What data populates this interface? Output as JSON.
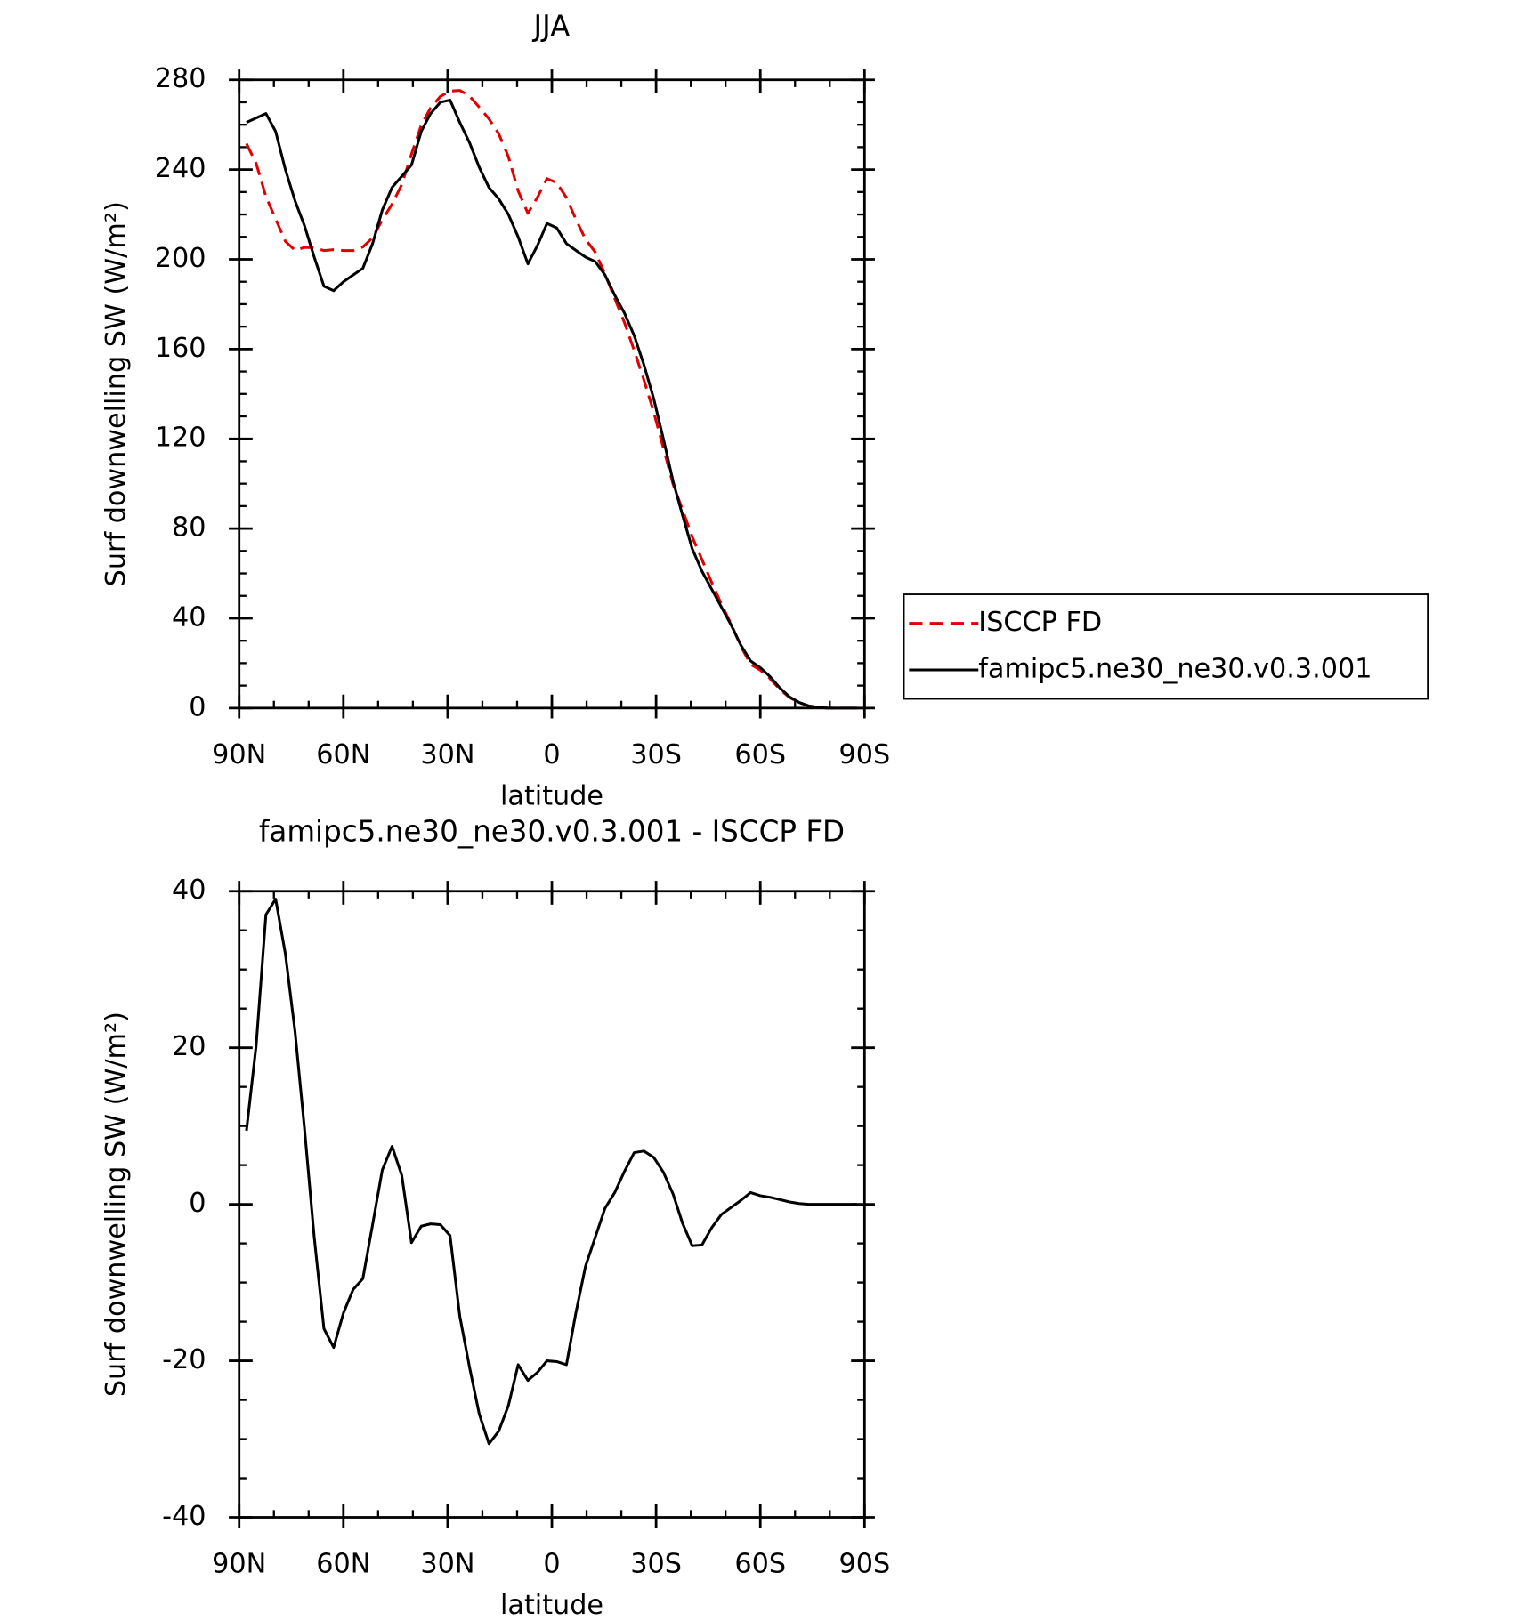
{
  "chart_data": [
    {
      "type": "line",
      "title": "JJA",
      "xlabel": "latitude",
      "ylabel": "Surf downwelling SW (W/m²)",
      "x": [
        87.9,
        85.1,
        82.3,
        79.5,
        76.7,
        73.9,
        71.2,
        68.4,
        65.6,
        62.8,
        60.0,
        57.2,
        54.4,
        51.6,
        48.8,
        46.0,
        43.2,
        40.4,
        37.6,
        34.9,
        32.1,
        29.3,
        26.5,
        23.7,
        20.9,
        18.1,
        15.3,
        12.5,
        9.7,
        6.9,
        4.2,
        1.4,
        -1.4,
        -4.2,
        -6.9,
        -9.7,
        -12.5,
        -15.3,
        -18.1,
        -20.9,
        -23.7,
        -26.5,
        -29.3,
        -32.1,
        -34.9,
        -37.6,
        -40.4,
        -43.2,
        -46.0,
        -48.8,
        -51.6,
        -54.4,
        -57.2,
        -60.0,
        -62.8,
        -65.6,
        -68.4,
        -71.2,
        -73.9,
        -76.7,
        -79.5,
        -82.3,
        -85.1,
        -87.9
      ],
      "series": [
        {
          "name": "ISCCP FD",
          "color": "#e00000",
          "line_style": "dashed",
          "values": [
            251.6,
            242.7,
            228,
            218,
            208,
            204,
            205.3,
            205.2,
            203.9,
            204.3,
            203.9,
            203.9,
            205.5,
            209.6,
            217.6,
            224.6,
            233.3,
            246.9,
            259.8,
            267.5,
            272.6,
            275,
            275.3,
            272.8,
            267.8,
            262.6,
            256,
            245.7,
            230.5,
            220.5,
            227.5,
            236,
            234.1,
            227.5,
            217.9,
            208.9,
            203.2,
            193.5,
            182.5,
            171.8,
            159.4,
            146.2,
            132,
            115.9,
            99.7,
            88.4,
            76.3,
            66.2,
            56,
            46.3,
            37.4,
            27.5,
            19.5,
            16.9,
            13.1,
            8.4,
            4.7,
            2.4,
            1,
            0.3,
            0,
            0,
            0,
            0
          ]
        },
        {
          "name": "famipc5.ne30_ne30.v0.3.001",
          "color": "#000000",
          "line_style": "solid",
          "values": [
            261,
            263,
            265,
            257,
            240,
            226,
            215,
            201,
            188,
            186,
            190,
            193,
            196,
            207,
            222,
            232,
            237,
            242,
            257,
            265,
            270,
            271,
            261,
            252,
            241,
            232,
            227,
            220,
            210,
            198,
            206,
            216,
            214,
            207,
            204,
            201,
            199,
            193,
            184,
            176,
            166,
            153,
            138,
            120,
            101,
            86,
            71,
            61,
            53,
            45,
            37,
            28,
            21,
            18,
            14,
            9,
            5,
            2.5,
            1,
            0.3,
            0,
            0,
            0,
            0
          ]
        }
      ],
      "xlim": [
        90,
        -90
      ],
      "xticks": [
        {
          "value": 90,
          "label": "90N"
        },
        {
          "value": 60,
          "label": "60N"
        },
        {
          "value": 30,
          "label": "30N"
        },
        0,
        {
          "value": -30,
          "label": "30S"
        },
        {
          "value": -60,
          "label": "60S"
        },
        {
          "value": -90,
          "label": "90S"
        }
      ],
      "ylim": [
        0,
        280
      ],
      "yticks": [
        0,
        40,
        80,
        120,
        160,
        200,
        240,
        280
      ],
      "minor_xtick_step": 10,
      "minor_ytick_step": 10,
      "grid": false,
      "legend": "right"
    },
    {
      "type": "line",
      "title": "famipc5.ne30_ne30.v0.3.001 - ISCCP FD",
      "xlabel": "latitude",
      "ylabel": "Surf downwelling SW (W/m²)",
      "x": [
        87.9,
        85.1,
        82.3,
        79.5,
        76.7,
        73.9,
        71.2,
        68.4,
        65.6,
        62.8,
        60.0,
        57.2,
        54.4,
        51.6,
        48.8,
        46.0,
        43.2,
        40.4,
        37.6,
        34.9,
        32.1,
        29.3,
        26.5,
        23.7,
        20.9,
        18.1,
        15.3,
        12.5,
        9.7,
        6.9,
        4.2,
        1.4,
        -1.4,
        -4.2,
        -6.9,
        -9.7,
        -12.5,
        -15.3,
        -18.1,
        -20.9,
        -23.7,
        -26.5,
        -29.3,
        -32.1,
        -34.9,
        -37.6,
        -40.4,
        -43.2,
        -46.0,
        -48.8,
        -51.6,
        -54.4,
        -57.2,
        -60.0,
        -62.8,
        -65.6,
        -68.4,
        -71.2,
        -73.9,
        -76.7,
        -79.5,
        -82.3,
        -85.1,
        -87.9
      ],
      "series": [
        {
          "color": "#000000",
          "line_style": "solid",
          "values": [
            9.4,
            20.3,
            37,
            39,
            32,
            22,
            9.7,
            -4.2,
            -15.9,
            -18.3,
            -13.9,
            -10.9,
            -9.5,
            -2.6,
            4.4,
            7.4,
            3.7,
            -4.9,
            -2.8,
            -2.5,
            -2.6,
            -4,
            -14.3,
            -20.8,
            -26.8,
            -30.6,
            -29,
            -25.7,
            -20.5,
            -22.5,
            -21.5,
            -20,
            -20.1,
            -20.5,
            -13.9,
            -7.9,
            -4.2,
            -0.5,
            1.5,
            4.2,
            6.6,
            6.8,
            6,
            4.1,
            1.3,
            -2.4,
            -5.3,
            -5.2,
            -3,
            -1.3,
            -0.4,
            0.5,
            1.5,
            1.1,
            0.9,
            0.6,
            0.3,
            0.1,
            0,
            0,
            0,
            0,
            0,
            0
          ]
        }
      ],
      "xlim": [
        90,
        -90
      ],
      "xticks": [
        {
          "value": 90,
          "label": "90N"
        },
        {
          "value": 60,
          "label": "60N"
        },
        {
          "value": 30,
          "label": "30N"
        },
        0,
        {
          "value": -30,
          "label": "30S"
        },
        {
          "value": -60,
          "label": "60S"
        },
        {
          "value": -90,
          "label": "90S"
        }
      ],
      "ylim": [
        -40,
        40
      ],
      "yticks": [
        -40,
        -20,
        0,
        20,
        40
      ],
      "minor_xtick_step": 10,
      "minor_ytick_step": 5,
      "grid": false
    }
  ]
}
